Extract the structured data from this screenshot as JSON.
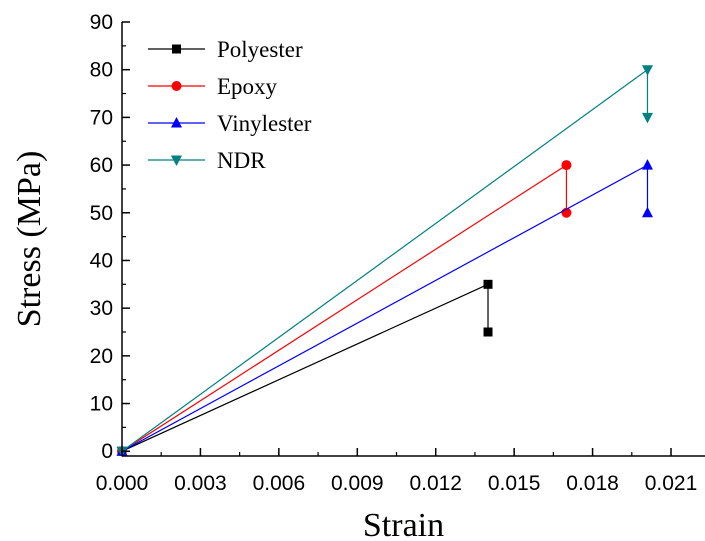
{
  "chart_data": {
    "type": "line",
    "title": "",
    "xlabel": "Strain",
    "ylabel": "Stress (MPa)",
    "xlim": [
      0,
      0.0223
    ],
    "ylim": [
      -1,
      90
    ],
    "x_ticks": [
      0,
      0.003,
      0.006,
      0.009,
      0.012,
      0.015,
      0.018,
      0.021
    ],
    "x_tick_labels": [
      "0.000",
      "0.003",
      "0.006",
      "0.009",
      "0.012",
      "0.015",
      "0.018",
      "0.021"
    ],
    "y_ticks": [
      0,
      10,
      20,
      30,
      40,
      50,
      60,
      70,
      80,
      90
    ],
    "y_tick_labels": [
      "0",
      "10",
      "20",
      "30",
      "40",
      "50",
      "60",
      "70",
      "80",
      "90"
    ],
    "grid": false,
    "legend_position": "top-left",
    "series": [
      {
        "name": "Polyester",
        "color": "#000000",
        "marker": "square",
        "points": [
          [
            0,
            0
          ],
          [
            0.014,
            35
          ],
          [
            0.014,
            25
          ]
        ]
      },
      {
        "name": "Epoxy",
        "color": "#ff0000",
        "marker": "circle",
        "points": [
          [
            0,
            0
          ],
          [
            0.017,
            60
          ],
          [
            0.017,
            50
          ]
        ]
      },
      {
        "name": "Vinylester",
        "color": "#0000ff",
        "marker": "triangle-up",
        "points": [
          [
            0,
            0
          ],
          [
            0.0201,
            60
          ],
          [
            0.0201,
            50
          ]
        ]
      },
      {
        "name": "NDR",
        "color": "#008080",
        "marker": "triangle-down",
        "points": [
          [
            0,
            0
          ],
          [
            0.0201,
            80
          ],
          [
            0.0201,
            70
          ]
        ]
      }
    ]
  }
}
